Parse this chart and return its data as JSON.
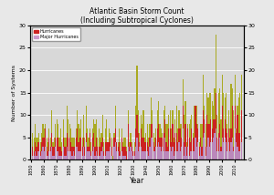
{
  "title_line1": "Atlantic Basin Storm Count",
  "title_line2": "(Including Subtropical Cyclones)",
  "xlabel": "Year",
  "ylabel": "Number of Systems",
  "ylim": [
    0,
    30
  ],
  "yticks": [
    0,
    5,
    10,
    15,
    20,
    25,
    30
  ],
  "legend_labels": [
    "Hurricanes",
    "Major Hurricanes"
  ],
  "legend_colors": [
    "#cc2222",
    "#cc99cc"
  ],
  "bar_color_named": "#aaaa22",
  "bar_color_hurricane": "#cc2222",
  "bar_color_major": "#bb88bb",
  "background_color": "#d8d8d8",
  "fig_bg_color": "#e8e8e8",
  "years": [
    1851,
    1852,
    1853,
    1854,
    1855,
    1856,
    1857,
    1858,
    1859,
    1860,
    1861,
    1862,
    1863,
    1864,
    1865,
    1866,
    1867,
    1868,
    1869,
    1870,
    1871,
    1872,
    1873,
    1874,
    1875,
    1876,
    1877,
    1878,
    1879,
    1880,
    1881,
    1882,
    1883,
    1884,
    1885,
    1886,
    1887,
    1888,
    1889,
    1890,
    1891,
    1892,
    1893,
    1894,
    1895,
    1896,
    1897,
    1898,
    1899,
    1900,
    1901,
    1902,
    1903,
    1904,
    1905,
    1906,
    1907,
    1908,
    1909,
    1910,
    1911,
    1912,
    1913,
    1914,
    1915,
    1916,
    1917,
    1918,
    1919,
    1920,
    1921,
    1922,
    1923,
    1924,
    1925,
    1926,
    1927,
    1928,
    1929,
    1930,
    1931,
    1932,
    1933,
    1934,
    1935,
    1936,
    1937,
    1938,
    1939,
    1940,
    1941,
    1942,
    1943,
    1944,
    1945,
    1946,
    1947,
    1948,
    1949,
    1950,
    1951,
    1952,
    1953,
    1954,
    1955,
    1956,
    1957,
    1958,
    1959,
    1960,
    1961,
    1962,
    1963,
    1964,
    1965,
    1966,
    1967,
    1968,
    1969,
    1970,
    1971,
    1972,
    1973,
    1974,
    1975,
    1976,
    1977,
    1978,
    1979,
    1980,
    1981,
    1982,
    1983,
    1984,
    1985,
    1986,
    1987,
    1988,
    1989,
    1990,
    1991,
    1992,
    1993,
    1994,
    1995,
    1996,
    1997,
    1998,
    1999,
    2000,
    2001,
    2002,
    2003,
    2004,
    2005,
    2006,
    2007,
    2008,
    2009,
    2010,
    2011,
    2012,
    2013,
    2014,
    2015
  ],
  "named_storms": [
    6,
    5,
    8,
    5,
    5,
    6,
    4,
    6,
    8,
    7,
    8,
    5,
    4,
    7,
    5,
    11,
    4,
    5,
    8,
    9,
    8,
    5,
    7,
    4,
    9,
    5,
    5,
    12,
    9,
    8,
    7,
    5,
    5,
    5,
    7,
    11,
    8,
    7,
    9,
    5,
    10,
    5,
    12,
    7,
    5,
    7,
    4,
    7,
    9,
    8,
    9,
    5,
    7,
    5,
    6,
    10,
    4,
    7,
    9,
    4,
    7,
    6,
    5,
    1,
    6,
    12,
    4,
    4,
    7,
    4,
    7,
    4,
    5,
    5,
    3,
    11,
    4,
    6,
    4,
    2,
    4,
    12,
    21,
    11,
    6,
    10,
    8,
    11,
    5,
    6,
    8,
    5,
    8,
    14,
    11,
    6,
    5,
    7,
    11,
    13,
    8,
    7,
    6,
    11,
    12,
    8,
    8,
    10,
    11,
    7,
    11,
    5,
    9,
    12,
    7,
    11,
    8,
    8,
    18,
    10,
    13,
    4,
    8,
    8,
    9,
    10,
    6,
    12,
    12,
    12,
    8,
    4,
    8,
    8,
    19,
    12,
    8,
    15,
    14,
    15,
    15,
    13,
    12,
    16,
    28,
    10,
    15,
    16,
    9,
    19,
    15,
    14,
    15,
    8,
    11,
    7,
    17,
    16,
    11,
    19,
    7,
    12,
    14,
    15,
    19
  ],
  "hurricanes": [
    3,
    2,
    4,
    3,
    4,
    4,
    2,
    4,
    5,
    5,
    7,
    3,
    2,
    5,
    3,
    6,
    3,
    3,
    5,
    5,
    5,
    3,
    3,
    2,
    5,
    3,
    3,
    6,
    5,
    5,
    4,
    3,
    3,
    3,
    5,
    7,
    4,
    5,
    5,
    3,
    5,
    3,
    6,
    3,
    3,
    6,
    2,
    5,
    6,
    3,
    5,
    3,
    3,
    3,
    4,
    5,
    2,
    4,
    4,
    4,
    4,
    5,
    3,
    0,
    5,
    7,
    4,
    3,
    4,
    2,
    5,
    3,
    3,
    3,
    2,
    8,
    3,
    4,
    3,
    2,
    2,
    7,
    10,
    6,
    4,
    7,
    5,
    5,
    4,
    4,
    4,
    3,
    5,
    8,
    8,
    4,
    3,
    5,
    7,
    8,
    5,
    5,
    5,
    6,
    9,
    4,
    3,
    7,
    7,
    4,
    8,
    4,
    6,
    6,
    4,
    7,
    7,
    5,
    12,
    4,
    8,
    3,
    7,
    5,
    4,
    7,
    5,
    5,
    12,
    8,
    7,
    3,
    5,
    3,
    11,
    9,
    3,
    10,
    8,
    8,
    9,
    7,
    9,
    9,
    15,
    5,
    6,
    8,
    3,
    12,
    7,
    9,
    7,
    6,
    7,
    5,
    7,
    12,
    3,
    12,
    6,
    10,
    6,
    6,
    11
  ],
  "major_hurricanes": [
    1,
    1,
    2,
    1,
    2,
    2,
    1,
    2,
    3,
    2,
    3,
    1,
    1,
    2,
    2,
    3,
    1,
    1,
    3,
    2,
    2,
    1,
    1,
    1,
    3,
    1,
    1,
    3,
    2,
    2,
    2,
    1,
    2,
    1,
    3,
    3,
    2,
    2,
    2,
    1,
    3,
    1,
    4,
    2,
    2,
    2,
    1,
    2,
    3,
    1,
    2,
    1,
    1,
    1,
    2,
    3,
    1,
    1,
    2,
    2,
    2,
    3,
    1,
    0,
    3,
    4,
    2,
    2,
    1,
    1,
    2,
    1,
    1,
    1,
    0,
    3,
    2,
    3,
    2,
    1,
    1,
    3,
    5,
    2,
    3,
    3,
    2,
    2,
    2,
    2,
    2,
    1,
    3,
    5,
    5,
    2,
    2,
    3,
    3,
    4,
    3,
    2,
    3,
    2,
    5,
    2,
    2,
    2,
    3,
    2,
    3,
    1,
    2,
    2,
    2,
    4,
    2,
    3,
    7,
    1,
    3,
    1,
    3,
    1,
    2,
    2,
    2,
    2,
    5,
    3,
    4,
    1,
    3,
    1,
    5,
    6,
    1,
    3,
    5,
    3,
    4,
    4,
    5,
    6,
    7,
    2,
    2,
    5,
    2,
    5,
    4,
    5,
    4,
    2,
    4,
    2,
    4,
    5,
    2,
    7,
    4,
    3,
    2,
    2,
    4
  ]
}
